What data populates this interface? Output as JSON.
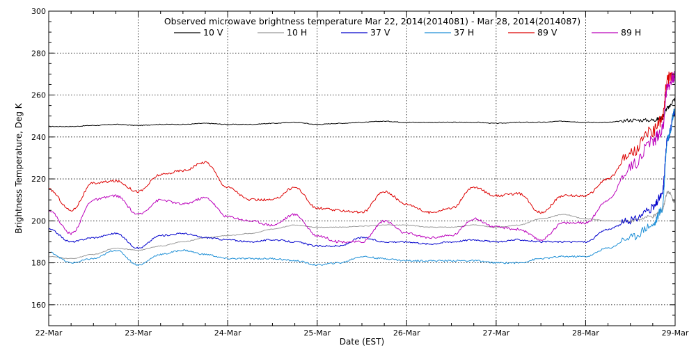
{
  "chart_data": {
    "type": "line",
    "title": "Observed microwave brightness temperature Mar 22, 2014(2014081) - Mar 28, 2014(2014087)",
    "xlabel": "Date (EST)",
    "ylabel": "Brightness Temperature, Deg K",
    "xlim": [
      0,
      7
    ],
    "ylim": [
      150,
      300
    ],
    "x_ticks": [
      {
        "value": 0,
        "label": "22-Mar"
      },
      {
        "value": 1,
        "label": "23-Mar"
      },
      {
        "value": 2,
        "label": "24-Mar"
      },
      {
        "value": 3,
        "label": "25-Mar"
      },
      {
        "value": 4,
        "label": "26-Mar"
      },
      {
        "value": 5,
        "label": "27-Mar"
      },
      {
        "value": 6,
        "label": "28-Mar"
      },
      {
        "value": 7,
        "label": "29-Mar"
      }
    ],
    "y_ticks": [
      160,
      180,
      200,
      220,
      240,
      260,
      280,
      300
    ],
    "y_minor_step": 5,
    "x_minor_per_major": 4,
    "grid": true,
    "legend_placement": "top-center",
    "series": [
      {
        "name": "10 V",
        "color": "#000000",
        "x": [
          0,
          0.25,
          0.5,
          0.75,
          1.0,
          1.25,
          1.5,
          1.75,
          2.0,
          2.25,
          2.5,
          2.75,
          3.0,
          3.25,
          3.5,
          3.75,
          4.0,
          4.25,
          4.5,
          4.75,
          5.0,
          5.25,
          5.5,
          5.75,
          6.0,
          6.25,
          6.5,
          6.75,
          6.85,
          6.92,
          7.0
        ],
        "y": [
          245,
          245,
          245.5,
          246,
          245.5,
          246,
          246,
          246.5,
          246,
          246,
          246.5,
          247,
          246,
          246.5,
          247,
          247.5,
          247,
          247,
          247,
          247,
          246.5,
          247,
          247,
          247.5,
          247,
          247,
          248,
          248,
          249,
          254,
          258
        ]
      },
      {
        "name": "10 H",
        "color": "#999999",
        "x": [
          0,
          0.25,
          0.5,
          0.75,
          1.0,
          1.25,
          1.5,
          1.75,
          2.0,
          2.25,
          2.5,
          2.75,
          3.0,
          3.25,
          3.5,
          3.75,
          4.0,
          4.25,
          4.5,
          4.75,
          5.0,
          5.25,
          5.5,
          5.75,
          6.0,
          6.25,
          6.5,
          6.75,
          6.85,
          6.92,
          7.0
        ],
        "y": [
          183,
          182,
          184,
          187,
          186,
          188,
          190,
          192,
          193,
          194,
          196,
          198,
          197,
          197,
          197.5,
          198,
          198,
          197,
          197,
          198,
          197,
          198,
          201,
          203,
          201,
          200,
          200,
          202,
          205,
          214,
          209
        ]
      },
      {
        "name": "37 V",
        "color": "#0000cc",
        "x": [
          0,
          0.25,
          0.5,
          0.75,
          1.0,
          1.25,
          1.5,
          1.75,
          2.0,
          2.25,
          2.5,
          2.75,
          3.0,
          3.25,
          3.5,
          3.75,
          4.0,
          4.25,
          4.5,
          4.75,
          5.0,
          5.25,
          5.5,
          5.75,
          6.0,
          6.25,
          6.5,
          6.75,
          6.85,
          6.92,
          7.0
        ],
        "y": [
          196,
          190,
          192,
          194,
          187,
          193,
          194,
          192,
          191,
          190,
          191,
          190,
          188,
          188,
          192,
          190,
          190,
          189,
          190,
          191,
          190,
          191,
          190,
          190,
          190,
          196,
          200,
          206,
          212,
          240,
          252
        ]
      },
      {
        "name": "37 H",
        "color": "#1e8fd6",
        "x": [
          0,
          0.25,
          0.5,
          0.75,
          1.0,
          1.25,
          1.5,
          1.75,
          2.0,
          2.25,
          2.5,
          2.75,
          3.0,
          3.25,
          3.5,
          3.75,
          4.0,
          4.25,
          4.5,
          4.75,
          5.0,
          5.25,
          5.5,
          5.75,
          6.0,
          6.25,
          6.5,
          6.75,
          6.85,
          6.92,
          7.0
        ],
        "y": [
          185,
          180,
          182,
          186,
          179,
          184,
          186,
          184,
          182,
          182,
          182,
          181,
          179,
          180,
          183,
          182,
          181,
          181,
          181,
          181,
          180,
          180,
          182,
          183,
          183,
          187,
          192,
          198,
          205,
          240,
          253
        ]
      },
      {
        "name": "89 V",
        "color": "#dd0000",
        "x": [
          0,
          0.25,
          0.5,
          0.75,
          1.0,
          1.25,
          1.5,
          1.75,
          2.0,
          2.25,
          2.5,
          2.75,
          3.0,
          3.25,
          3.5,
          3.75,
          4.0,
          4.25,
          4.5,
          4.75,
          5.0,
          5.25,
          5.5,
          5.75,
          6.0,
          6.25,
          6.5,
          6.75,
          6.85,
          6.92,
          7.0
        ],
        "y": [
          215,
          205,
          218,
          219,
          214,
          222,
          224,
          228,
          216,
          210,
          210,
          216,
          206,
          205,
          204,
          214,
          208,
          204,
          206,
          216,
          212,
          213,
          204,
          212,
          212,
          220,
          232,
          243,
          248,
          268,
          270
        ]
      },
      {
        "name": "89 H",
        "color": "#bb00bb",
        "x": [
          0,
          0.25,
          0.5,
          0.75,
          1.0,
          1.25,
          1.5,
          1.75,
          2.0,
          2.25,
          2.5,
          2.75,
          3.0,
          3.25,
          3.5,
          3.75,
          4.0,
          4.25,
          4.5,
          4.75,
          5.0,
          5.25,
          5.5,
          5.75,
          6.0,
          6.25,
          6.5,
          6.75,
          6.85,
          6.92,
          7.0
        ],
        "y": [
          205,
          194,
          210,
          212,
          203,
          210,
          208,
          211,
          202,
          200,
          198,
          203,
          193,
          190,
          190,
          200,
          194,
          192,
          193,
          201,
          197,
          196,
          191,
          199,
          199,
          210,
          226,
          238,
          243,
          265,
          269
        ]
      }
    ]
  }
}
